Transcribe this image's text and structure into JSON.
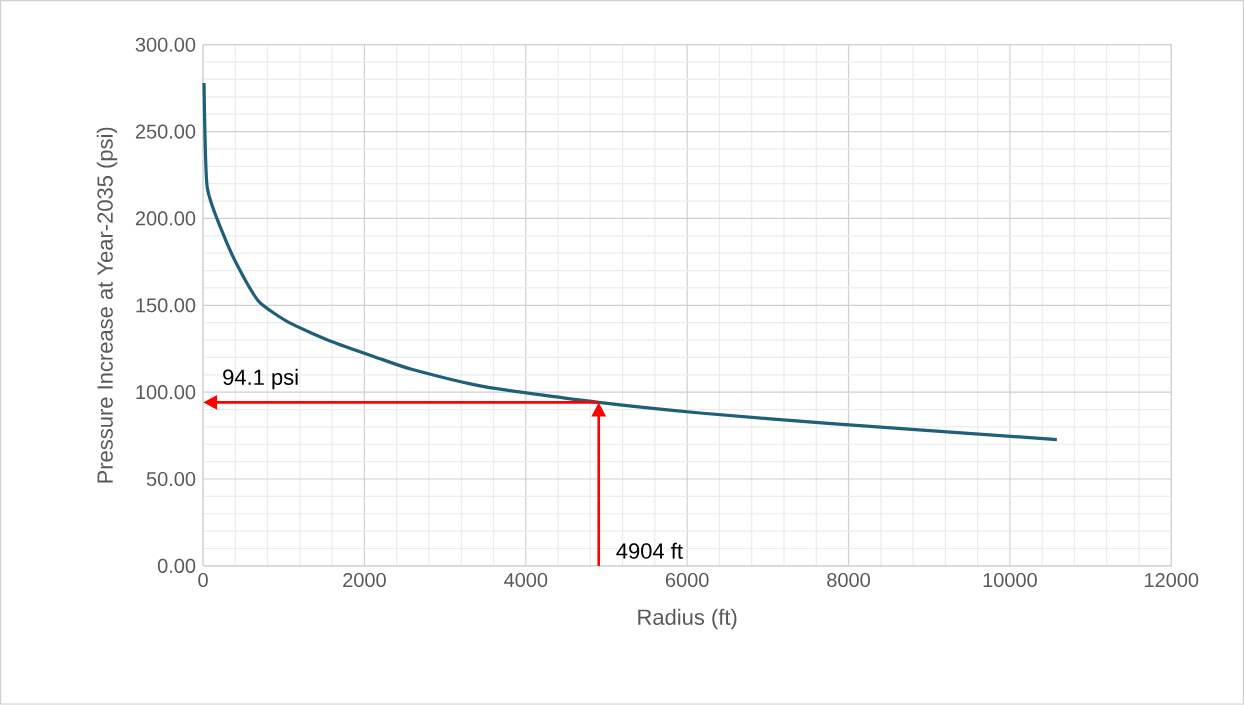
{
  "chart_data": {
    "type": "line",
    "xlabel": "Radius (ft)",
    "ylabel": "Pressure Increase at Year-2035 (psi)",
    "series": [
      {
        "color": "#1f5f7a",
        "x": [
          12,
          50,
          236,
          447,
          696,
          1068,
          1600,
          2148,
          2596,
          3500,
          4904,
          6160,
          7750,
          10582
        ],
        "values": [
          278,
          218.5,
          192.5,
          171,
          152,
          140,
          129,
          120,
          113,
          103,
          94.1,
          88,
          82,
          72.7
        ]
      }
    ],
    "xlim": [
      0,
      12000
    ],
    "xticks": [
      0,
      2000,
      4000,
      6000,
      8000,
      10000,
      12000
    ],
    "ylim": [
      0,
      300
    ],
    "yticks": [
      {
        "value": 0,
        "label": "0.00"
      },
      {
        "value": 50,
        "label": "50.00"
      },
      {
        "value": 100,
        "label": "100.00"
      },
      {
        "value": 150,
        "label": "150.00"
      },
      {
        "value": 200,
        "label": "200.00"
      },
      {
        "value": 250,
        "label": "250.00"
      },
      {
        "value": 300,
        "label": "300.00"
      }
    ],
    "grid": true,
    "ref_lines": [
      {
        "axis": "y",
        "value": 94.1,
        "label": "94.1 psi",
        "color": "#ff0000"
      },
      {
        "axis": "x",
        "value": 4904,
        "label": "4904 ft",
        "color": "#ff0000"
      }
    ]
  }
}
